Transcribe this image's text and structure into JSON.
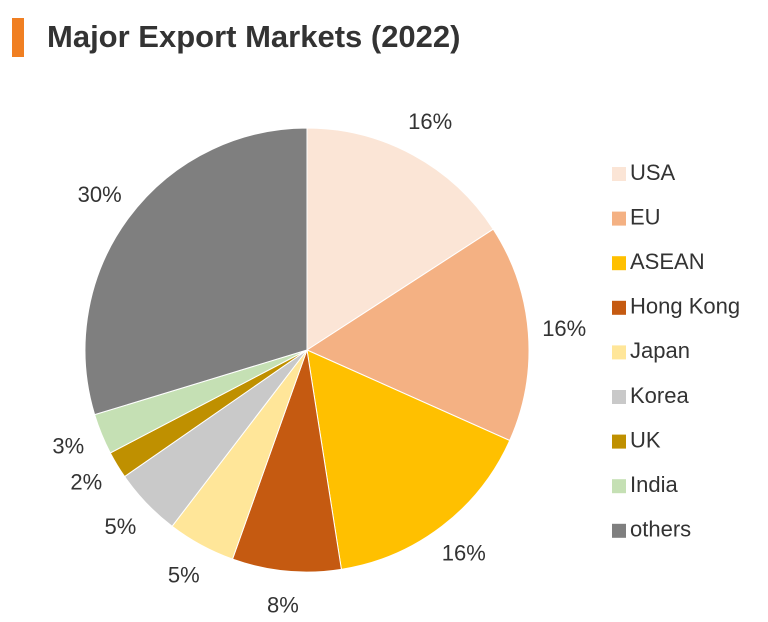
{
  "chart_data": {
    "type": "pie",
    "title": "Major Export Markets (2022)",
    "categories": [
      "USA",
      "EU",
      "ASEAN",
      "Hong Kong",
      "Japan",
      "Korea",
      "UK",
      "India",
      "others"
    ],
    "values": [
      16,
      16,
      16,
      8,
      5,
      5,
      2,
      3,
      30
    ],
    "value_labels": [
      "16%",
      "16%",
      "16%",
      "8%",
      "5%",
      "5%",
      "2%",
      "3%",
      "30%"
    ],
    "colors": [
      "#fbe5d6",
      "#f4b183",
      "#ffc000",
      "#c55a11",
      "#ffe699",
      "#c9c9c9",
      "#bf9000",
      "#c5e0b4",
      "#7f7f7f"
    ],
    "legend": "right"
  }
}
